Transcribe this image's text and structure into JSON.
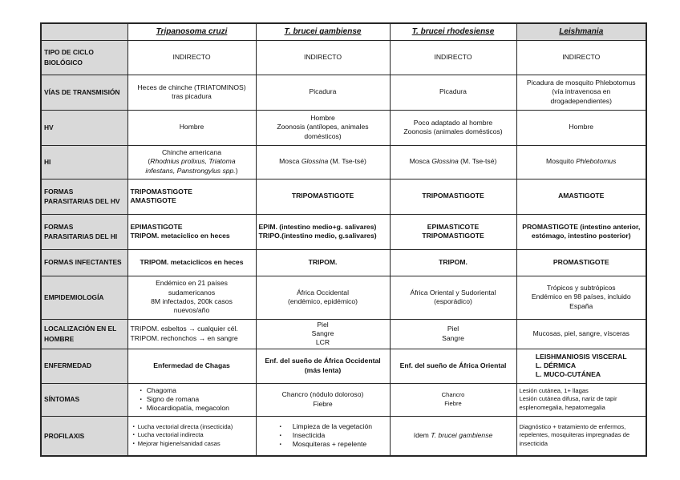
{
  "colors": {
    "page_bg": "#ffffff",
    "label_bg": "#d9d9d9",
    "border": "#262626"
  },
  "table": {
    "corner": "",
    "columns": [
      {
        "label": "Tripanosoma cruzi"
      },
      {
        "label": "T. brucei gambiense"
      },
      {
        "label": "T. brucei rhodesiense"
      },
      {
        "label": "Leishmania",
        "shaded": true
      }
    ],
    "rows": [
      {
        "label_lines": [
          "TIPO DE CICLO",
          "BIOLÓGICO"
        ],
        "cells": [
          {
            "lines": [
              "INDIRECTO"
            ]
          },
          {
            "lines": [
              "INDIRECTO"
            ]
          },
          {
            "lines": [
              "INDIRECTO"
            ]
          },
          {
            "lines": [
              "INDIRECTO"
            ]
          }
        ]
      },
      {
        "label_lines": [
          "VÍAS DE TRANSMISIÓN"
        ],
        "cells": [
          {
            "lines": [
              "Heces de chinche (TRIATOMINOS)",
              "tras picadura"
            ]
          },
          {
            "lines": [
              "Picadura"
            ]
          },
          {
            "lines": [
              "Picadura"
            ]
          },
          {
            "lines": [
              "Picadura de mosquito Phlebotomus",
              "(vía intravenosa en",
              "drogadependientes)"
            ]
          }
        ]
      },
      {
        "label_lines": [
          "HV"
        ],
        "cells": [
          {
            "lines": [
              "Hombre"
            ]
          },
          {
            "lines": [
              "Hombre",
              "Zoonosis (antílopes, animales",
              "domésticos)"
            ]
          },
          {
            "lines": [
              "Poco adaptado al hombre",
              "Zoonosis (animales domésticos)"
            ]
          },
          {
            "lines": [
              "Hombre"
            ]
          }
        ]
      },
      {
        "label_lines": [
          "HI"
        ],
        "cells": [
          {
            "lines": [
              "Chinche americana",
              [
                {
                  "t": "(",
                  "i": false
                },
                {
                  "t": "Rhodnius prolixus, Triatoma",
                  "i": true
                }
              ],
              [
                {
                  "t": "infestans, Panstrongylus spp.",
                  "i": true
                },
                {
                  "t": ")",
                  "i": false
                }
              ]
            ]
          },
          {
            "lines": [
              [
                {
                  "t": "Mosca ",
                  "i": false
                },
                {
                  "t": "Glossina",
                  "i": true
                },
                {
                  "t": " (M. Tse-tsé)",
                  "i": false
                }
              ]
            ]
          },
          {
            "lines": [
              [
                {
                  "t": "Mosca ",
                  "i": false
                },
                {
                  "t": "Glossina",
                  "i": true
                },
                {
                  "t": " (M. Tse-tsé)",
                  "i": false
                }
              ]
            ]
          },
          {
            "lines": [
              [
                {
                  "t": "Mosquito ",
                  "i": false
                },
                {
                  "t": "Phlebotomus",
                  "i": true
                }
              ]
            ]
          }
        ]
      },
      {
        "label_lines": [
          "FORMAS",
          "PARASITARIAS DEL HV"
        ],
        "cells": [
          {
            "lines": [
              "TRIPOMASTIGOTE",
              "AMASTIGOTE"
            ],
            "bold": true,
            "left": true
          },
          {
            "lines": [
              "TRIPOMASTIGOTE"
            ],
            "bold": true
          },
          {
            "lines": [
              "TRIPOMASTIGOTE"
            ],
            "bold": true
          },
          {
            "lines": [
              "AMASTIGOTE"
            ],
            "bold": true
          }
        ]
      },
      {
        "label_lines": [
          "FORMAS",
          "PARASITARIAS DEL HI"
        ],
        "cells": [
          {
            "lines": [
              "EPIMASTIGOTE",
              "TRIPOM. metaciclico en heces"
            ],
            "bold": true,
            "left": true
          },
          {
            "lines": [
              "EPIM. (intestino medio+g. salivares)",
              "TRIPO.(intestino medio, g.salivares)"
            ],
            "bold": true,
            "left": true
          },
          {
            "lines": [
              "EPIMASTICOTE",
              "TRIPOMASTIGOTE"
            ],
            "bold": true
          },
          {
            "lines": [
              "PROMASTIGOTE (intestino anterior,",
              "estómago, intestino posterior)"
            ],
            "bold": true
          }
        ]
      },
      {
        "label_lines": [
          "FORMAS INFECTANTES"
        ],
        "cells": [
          {
            "lines": [
              "TRIPOM. metaciclicos en heces"
            ],
            "bold": true
          },
          {
            "lines": [
              "TRIPOM."
            ],
            "bold": true
          },
          {
            "lines": [
              "TRIPOM."
            ],
            "bold": true
          },
          {
            "lines": [
              "PROMASTIGOTE"
            ],
            "bold": true
          }
        ]
      },
      {
        "label_lines": [
          "EMPIDEMIOLOGÍA"
        ],
        "cells": [
          {
            "lines": [
              "Endémico en 21 países",
              "sudamericanos",
              "8M infectados, 200k casos",
              "nuevos/año"
            ]
          },
          {
            "lines": [
              "África Occidental",
              "(endémico, epidémico)"
            ]
          },
          {
            "lines": [
              "África Oriental y Sudoriental",
              "(esporádico)"
            ]
          },
          {
            "lines": [
              "Trópicos y subtrópicos",
              "Endémico en 98 países, incluido",
              "España"
            ]
          }
        ]
      },
      {
        "label_lines": [
          "LOCALIZACIÓN EN EL",
          "HOMBRE"
        ],
        "cells": [
          {
            "lines": [
              "TRIPOM. esbeltos → cualquier cél.",
              "TRIPOM. rechonchos → en sangre"
            ],
            "left": true
          },
          {
            "lines": [
              "Piel",
              "Sangre",
              "LCR"
            ]
          },
          {
            "lines": [
              "Piel",
              "Sangre"
            ]
          },
          {
            "lines": [
              "Mucosas, piel, sangre, vísceras"
            ]
          }
        ]
      },
      {
        "label_lines": [
          "ENFERMEDAD"
        ],
        "cells": [
          {
            "lines": [
              "Enfermedad de Chagas"
            ],
            "bold": true
          },
          {
            "lines": [
              "Enf. del sueño de África Occidental",
              "(más lenta)"
            ],
            "bold": true
          },
          {
            "lines": [
              "Enf. del sueño de África Oriental"
            ],
            "bold": true
          },
          {
            "lines": [
              "LEISHMANIOSIS VISCERAL",
              "L. DÉRMICA",
              "L. MUCO-CUTÁNEA"
            ],
            "bold": true,
            "block_center": true
          }
        ]
      },
      {
        "label_lines": [
          "SÍNTOMAS"
        ],
        "cells": [
          {
            "lines": [
              "Chagoma",
              "Signo de romana",
              "Miocardiopatía, megacolon"
            ],
            "bullets": true
          },
          {
            "lines": [
              "Chancro (nódulo doloroso)",
              "Fiebre"
            ]
          },
          {
            "lines": [
              "Chancro",
              "Fiebre"
            ],
            "small": true
          },
          {
            "lines": [
              "Lesión cutánea, 1+ llagas",
              "Lesión cutánea difusa, nariz de tapir",
              "esplenomegalia, hepatomegalia"
            ],
            "small": true,
            "left": true
          }
        ]
      },
      {
        "label_lines": [
          "PROFILAXIS"
        ],
        "cells": [
          {
            "lines": [
              "Lucha vectorial directa (insecticida)",
              "Lucha vectorial indirecta",
              "Mejorar higiene/sanidad casas"
            ],
            "bullets": true,
            "tight": true,
            "small": true
          },
          {
            "lines": [
              "Limpieza de la vegetación",
              "Insecticida",
              "Mosquiteras + repelente"
            ],
            "bullets": true,
            "indent": true
          },
          {
            "lines": [
              [
                {
                  "t": "ídem ",
                  "i": false
                },
                {
                  "t": "T. brucei gambiense",
                  "i": true
                }
              ]
            ]
          },
          {
            "lines": [
              "Diagnóstico + tratamiento de enfermos,",
              "repelentes, mosquiteras impregnadas de",
              "insecticida"
            ],
            "small": true,
            "left": true
          }
        ]
      }
    ]
  }
}
